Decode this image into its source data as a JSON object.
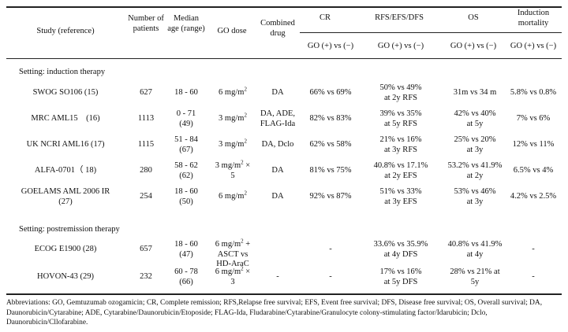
{
  "headers": {
    "study": "Study (reference)",
    "number": "Number of patients",
    "median": "Median age (range)",
    "go_dose": "GO dose",
    "combined": "Combined drug",
    "cr": "CR",
    "rfs": "RFS/EFS/DFS",
    "os": "OS",
    "induction": "Induction mortality",
    "sub_cr": "GO (+) vs (−)",
    "sub_rfs": "GO (+) vs (−)",
    "sub_os": "GO (+) vs (−)",
    "sub_ind": "GO (+) vs (−)"
  },
  "sections": {
    "induction": "Setting: induction therapy",
    "postremission": "Setting: postremission therapy"
  },
  "rows": [
    {
      "study": "SWOG SO106 (15)",
      "n": "627",
      "age1": "18 - 60",
      "age2": "",
      "dose": "6 mg/m",
      "dose_sup": "2",
      "dose2": "",
      "drug": "DA",
      "cr": "66% vs 69%",
      "rfs1": "50% vs 49%",
      "rfs2": "at 2y RFS",
      "os1": "31m vs 34 m",
      "os2": "",
      "ind": "5.8% vs 0.8%"
    },
    {
      "study": "MRC AML15　(16)",
      "n": "1113",
      "age1": "0 - 71",
      "age2": "(49)",
      "dose": "3 mg/m",
      "dose_sup": "2",
      "dose2": "",
      "drug": "DA, ADE,",
      "drug2": "FLAG-Ida",
      "cr": "82% vs 83%",
      "rfs1": "39% vs 35%",
      "rfs2": "at 5y RFS",
      "os1": "42% vs 40%",
      "os2": "at 5y",
      "ind": "7% vs 6%"
    },
    {
      "study": "UK NCRI AML16 (17)",
      "n": "1115",
      "age1": "51 - 84",
      "age2": "(67)",
      "dose": "3 mg/m",
      "dose_sup": "2",
      "dose2": "",
      "drug": "DA, Dclo",
      "cr": "62% vs 58%",
      "rfs1": "21% vs 16%",
      "rfs2": "at 3y RFS",
      "os1": "25% vs 20%",
      "os2": "at 3y",
      "ind": "12% vs 11%"
    },
    {
      "study": "ALFA-0701（ 18)",
      "n": "280",
      "age1": "58 - 62",
      "age2": "(62)",
      "dose": "3 mg/m",
      "dose_sup": "2",
      "dose_after": " ×",
      "dose2": "5",
      "drug": "DA",
      "cr": "81% vs 75%",
      "rfs1": "40.8% vs 17.1%",
      "rfs2": "at 2y EFS",
      "os1": "53.2% vs 41.9%",
      "os2": "at 2y",
      "ind": "6.5% vs 4%"
    },
    {
      "study": "GOELAMS AML 2006 IR",
      "study2": "(27)",
      "n": "254",
      "age1": "18 - 60",
      "age2": "(50)",
      "dose": "6 mg/m",
      "dose_sup": "2",
      "dose2": "",
      "drug": "DA",
      "cr": "92% vs 87%",
      "rfs1": "51% vs 33%",
      "rfs2": "at 3y EFS",
      "os1": "53% vs 46%",
      "os2": "at 3y",
      "ind": "4.2% vs 2.5%"
    },
    {
      "study": "ECOG E1900 (28)",
      "n": "657",
      "age1": "18 - 60",
      "age2": "(47)",
      "dose": "6 mg/m",
      "dose_sup": "2",
      "dose_after": " + ASCT vs",
      "dose2": "HD-AraC",
      "drug": "",
      "cr": "-",
      "rfs1": "33.6% vs 35.9%",
      "rfs2": "at 4y DFS",
      "os1": "40.8% vs 41.9%",
      "os2": "at 4y",
      "ind": "-"
    },
    {
      "study": "HOVON-43 (29)",
      "n": "232",
      "age1": "60 - 78",
      "age2": "(66)",
      "dose": "6 mg/m",
      "dose_sup": "2",
      "dose_after": " ×",
      "dose2": "3",
      "drug": "-",
      "cr": "-",
      "rfs1": "17% vs 16%",
      "rfs2": "at 5y DFS",
      "os1": "28% vs 21% at",
      "os2": "5y",
      "ind": "-"
    }
  ],
  "footnote": "Abbreviations: GO, Gemtuzumab ozogamicin; CR, Complete remission; RFS,Relapse free survival; EFS, Event free survival; DFS, Disease free survival; OS, Overall survival; DA, Daunorubicin/Cytarabine; ADE, Cytarabine/Daunorubicin/Etoposide; FLAG-Ida, Fludarabine/Cytarabine/Granulocyte colony-stimulating factor/Idarubicin; Dclo, Daunorubicin/Cllofarabine."
}
